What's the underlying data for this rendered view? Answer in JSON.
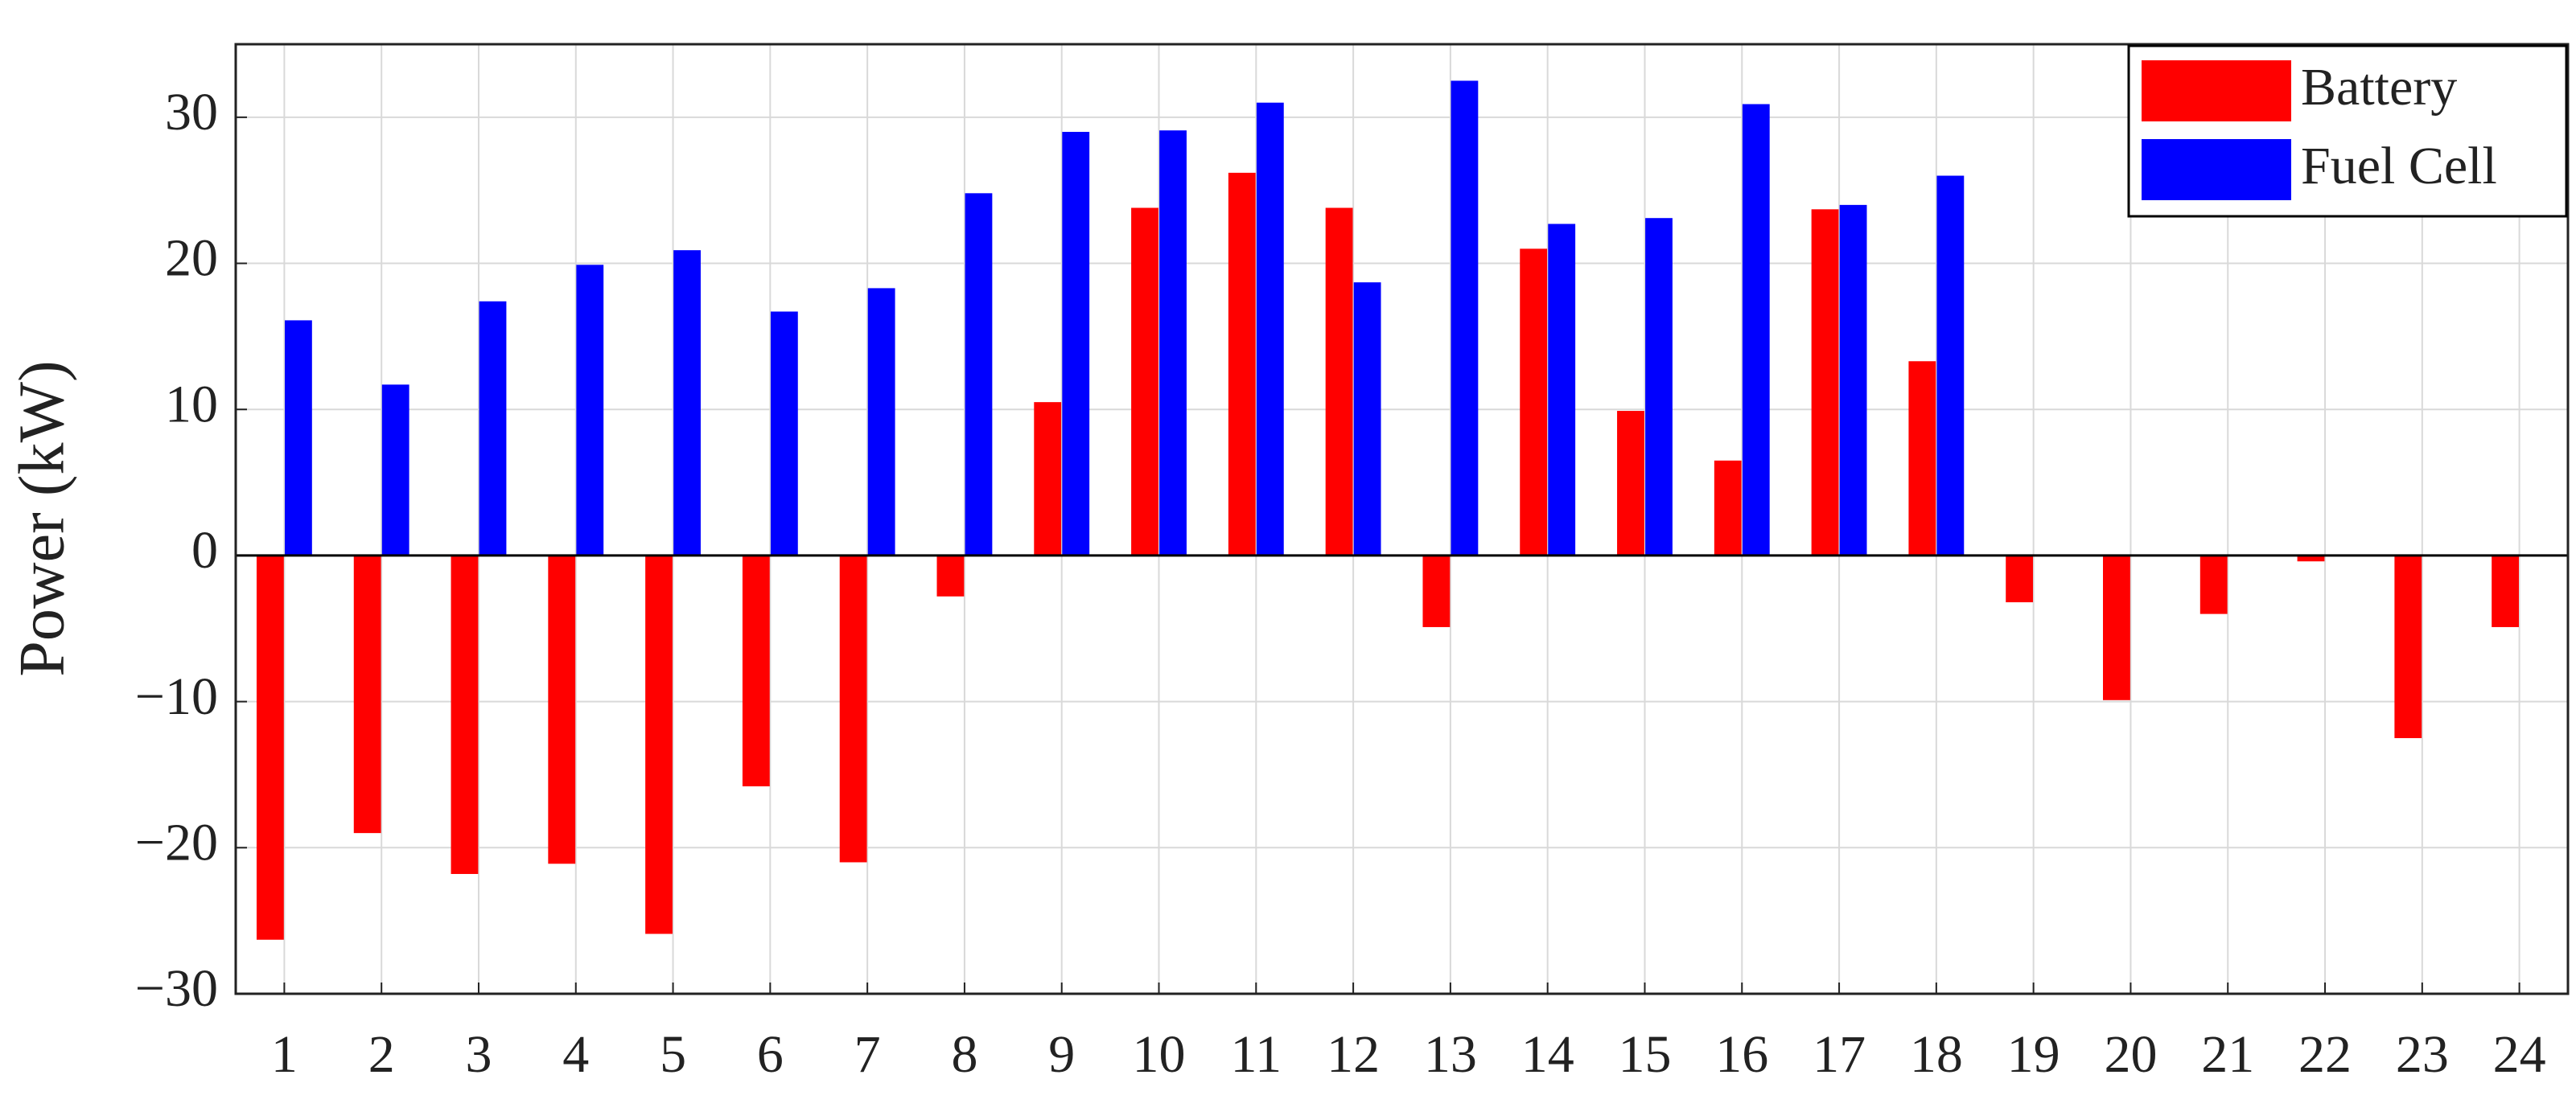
{
  "chart_data": {
    "type": "bar",
    "y_label": "Power (kW)",
    "categories": [
      "1",
      "2",
      "3",
      "4",
      "5",
      "6",
      "7",
      "8",
      "9",
      "10",
      "11",
      "12",
      "13",
      "14",
      "15",
      "16",
      "17",
      "18",
      "19",
      "20",
      "21",
      "22",
      "23",
      "24"
    ],
    "series": [
      {
        "name": "Battery",
        "color": "#ff0000",
        "values": [
          -26.3,
          -19,
          -21.8,
          -21.1,
          -25.9,
          -15.8,
          -21,
          -2.8,
          10.5,
          23.8,
          26.2,
          23.8,
          -4.9,
          21,
          9.9,
          6.5,
          23.7,
          13.3,
          -3.2,
          -9.9,
          -4,
          -0.4,
          -12.5,
          -4.9
        ]
      },
      {
        "name": "Fuel Cell",
        "color": "#0000ff",
        "values": [
          16.1,
          11.7,
          17.4,
          19.9,
          20.9,
          16.7,
          18.3,
          24.8,
          29,
          29.1,
          31,
          18.7,
          32.5,
          22.7,
          23.1,
          30.9,
          24,
          26,
          0,
          0,
          0,
          0,
          0,
          0
        ]
      }
    ],
    "ylim": [
      -30,
      35
    ],
    "yticks": [
      {
        "value": -30,
        "label": "−30"
      },
      {
        "value": -20,
        "label": "−20"
      },
      {
        "value": -10,
        "label": "−10"
      },
      0,
      10,
      20,
      30
    ],
    "grid": true,
    "legend": "top-right"
  }
}
